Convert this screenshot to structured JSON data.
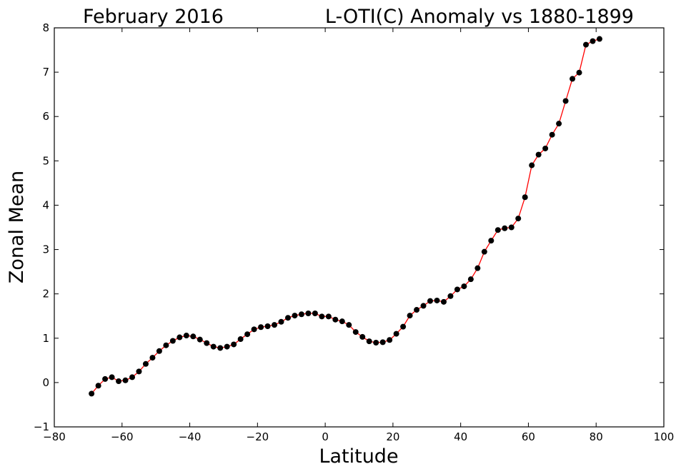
{
  "chart_data": {
    "type": "line",
    "title_left": "February 2016",
    "title_right": "L-OTI(C) Anomaly vs 1880-1899",
    "xlabel": "Latitude",
    "ylabel": "Zonal Mean",
    "xlim": [
      -80,
      100
    ],
    "ylim": [
      -1,
      8
    ],
    "xticks": [
      -80,
      -60,
      -40,
      -20,
      0,
      20,
      40,
      60,
      80,
      100
    ],
    "yticks": [
      -1,
      0,
      1,
      2,
      3,
      4,
      5,
      6,
      7,
      8
    ],
    "xtick_labels": [
      "−80",
      "−60",
      "−40",
      "−20",
      "0",
      "20",
      "40",
      "60",
      "80",
      "100"
    ],
    "ytick_labels": [
      "−1",
      "0",
      "1",
      "2",
      "3",
      "4",
      "5",
      "6",
      "7",
      "8"
    ],
    "grid": false,
    "line_color": "#ff0000",
    "marker_color": "#000000",
    "series": [
      {
        "x": [
          -69,
          -67,
          -65,
          -63,
          -61,
          -59,
          -57,
          -55,
          -53,
          -51,
          -49,
          -47,
          -45,
          -43,
          -41,
          -39,
          -37,
          -35,
          -33,
          -31,
          -29,
          -27,
          -25,
          -23,
          -21,
          -19,
          -17,
          -15,
          -13,
          -11,
          -9,
          -7,
          -5,
          -3,
          -1,
          1,
          3,
          5,
          7,
          9,
          11,
          13,
          15,
          17,
          19,
          21,
          23,
          25,
          27,
          29,
          31,
          33,
          35,
          37,
          39,
          41,
          43,
          45,
          47,
          49,
          51,
          53,
          55,
          57,
          59,
          61,
          63,
          65,
          67,
          69,
          71,
          73,
          75,
          77,
          79,
          81
        ],
        "y": [
          -0.25,
          -0.07,
          0.08,
          0.12,
          0.03,
          0.05,
          0.12,
          0.25,
          0.42,
          0.56,
          0.71,
          0.84,
          0.94,
          1.02,
          1.06,
          1.04,
          0.97,
          0.89,
          0.81,
          0.78,
          0.81,
          0.86,
          0.98,
          1.09,
          1.2,
          1.25,
          1.27,
          1.3,
          1.37,
          1.46,
          1.51,
          1.54,
          1.56,
          1.56,
          1.49,
          1.49,
          1.42,
          1.38,
          1.3,
          1.14,
          1.03,
          0.93,
          0.9,
          0.91,
          0.96,
          1.1,
          1.26,
          1.51,
          1.64,
          1.73,
          1.84,
          1.85,
          1.82,
          1.95,
          2.1,
          2.17,
          2.33,
          2.58,
          2.95,
          3.2,
          3.44,
          3.48,
          3.5,
          3.7,
          4.18,
          4.9,
          5.14,
          5.28,
          5.59,
          5.84,
          6.35,
          6.85,
          6.99,
          7.62,
          7.7,
          7.75
        ]
      }
    ]
  }
}
